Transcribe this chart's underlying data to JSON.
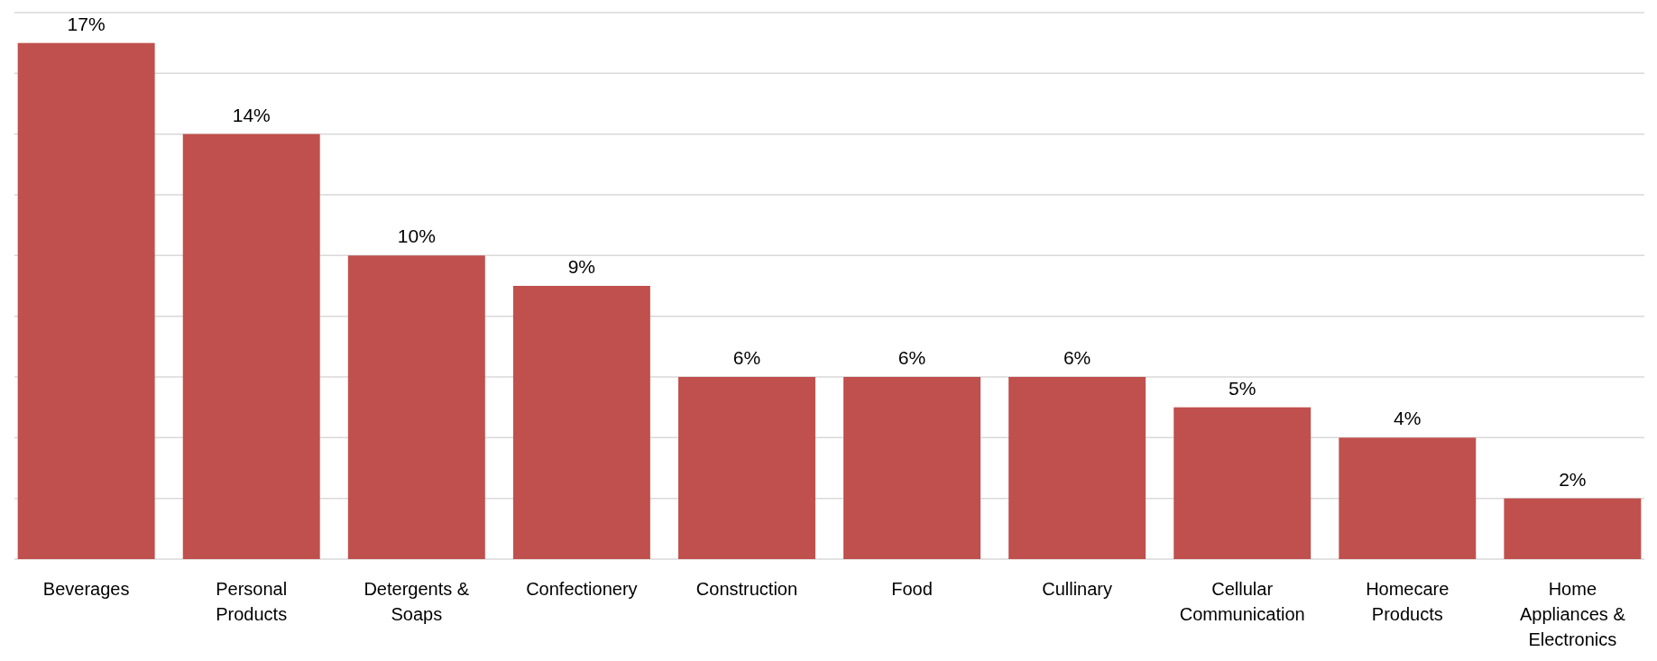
{
  "chart_data": {
    "type": "bar",
    "categories": [
      "Beverages",
      "Personal Products",
      "Detergents & Soaps",
      "Confectionery",
      "Construction",
      "Food",
      "Cullinary",
      "Cellular Communication",
      "Homecare Products",
      "Home Appliances & Electronics"
    ],
    "values": [
      17,
      14,
      10,
      9,
      6,
      6,
      6,
      5,
      4,
      2
    ],
    "value_labels": [
      "17%",
      "14%",
      "10%",
      "9%",
      "6%",
      "6%",
      "6%",
      "5%",
      "4%",
      "2%"
    ],
    "color": "#c0504d",
    "ylim": [
      0,
      18
    ],
    "yticks": [
      {
        "value": 0,
        "label": null
      },
      {
        "value": 2,
        "label": null
      },
      {
        "value": 4,
        "label": null
      },
      {
        "value": 6,
        "label": null
      },
      {
        "value": 8,
        "label": null
      },
      {
        "value": 10,
        "label": null
      },
      {
        "value": 12,
        "label": null
      },
      {
        "value": 14,
        "label": null
      },
      {
        "value": 16,
        "label": null
      },
      {
        "value": 18,
        "label": null
      }
    ],
    "grid": "y",
    "tick_labels": "x"
  }
}
